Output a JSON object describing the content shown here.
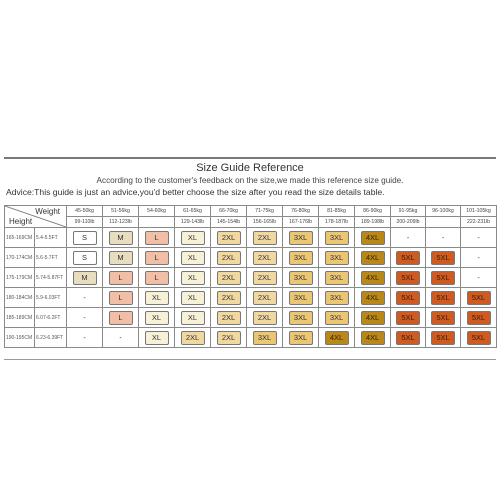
{
  "title": "Size Guide Reference",
  "subtitle": "According to the customer's feedback on the size,we made this reference size guide.",
  "advice": "Advice:This guide is just an advice,you'd better choose the size after you read the size details table.",
  "corner": {
    "weight_label": "Weight",
    "height_label": "Height"
  },
  "weights_kg": [
    "45-50kg",
    "51-56kg",
    "54-60kg",
    "61-65kg",
    "66-70kg",
    "71-75kg",
    "76-80kg",
    "81-85kg",
    "86-90kg",
    "91-95kg",
    "96-100kg",
    "101-105kg"
  ],
  "weights_lb": [
    "99-110lb",
    "112-123lb",
    "",
    "129-143lb",
    "145-154lb",
    "156-165lb",
    "167-176lb",
    "178-187lb",
    "189-198lb",
    "200-209lb",
    "",
    "222-231lb"
  ],
  "rows": [
    {
      "height_cm": "165-169CM",
      "height_ft": "5.4-5.5FT",
      "sizes": [
        "S",
        "M",
        "L",
        "XL",
        "2XL",
        "2XL",
        "3XL",
        "3XL",
        "4XL",
        "-",
        "-",
        "-"
      ]
    },
    {
      "height_cm": "170-174CM",
      "height_ft": "5.6-5.7FT",
      "sizes": [
        "S",
        "M",
        "L",
        "XL",
        "2XL",
        "2XL",
        "3XL",
        "3XL",
        "4XL",
        "5XL",
        "5XL",
        "-"
      ]
    },
    {
      "height_cm": "175-179CM",
      "height_ft": "5.74-5.87FT",
      "sizes": [
        "M",
        "L",
        "L",
        "XL",
        "2XL",
        "2XL",
        "3XL",
        "3XL",
        "4XL",
        "5XL",
        "5XL",
        "-"
      ]
    },
    {
      "height_cm": "180-184CM",
      "height_ft": "5.9-6.03FT",
      "sizes": [
        "-",
        "L",
        "XL",
        "XL",
        "2XL",
        "2XL",
        "3XL",
        "3XL",
        "4XL",
        "5XL",
        "5XL",
        "5XL"
      ]
    },
    {
      "height_cm": "185-189CM",
      "height_ft": "6.07-6.2FT",
      "sizes": [
        "-",
        "L",
        "XL",
        "XL",
        "2XL",
        "2XL",
        "3XL",
        "3XL",
        "4XL",
        "5XL",
        "5XL",
        "5XL"
      ]
    },
    {
      "height_cm": "190-195CM",
      "height_ft": "6.23-6.39FT",
      "sizes": [
        "-",
        "-",
        "XL",
        "2XL",
        "2XL",
        "3XL",
        "3XL",
        "4XL",
        "4XL",
        "5XL",
        "5XL",
        "5XL"
      ]
    }
  ],
  "colors": {
    "S": "#ffffff",
    "M": "#e9ddc0",
    "L": "#f2bfa6",
    "XL": "#f7f1d7",
    "2XL": "#f0d8a0",
    "3XL": "#ecc773",
    "4XL": "#b98818",
    "5XL": "#cf5a22",
    "-": "#ffffff",
    "grid": "#8a8a8a",
    "rule": "#7a7a7a"
  }
}
